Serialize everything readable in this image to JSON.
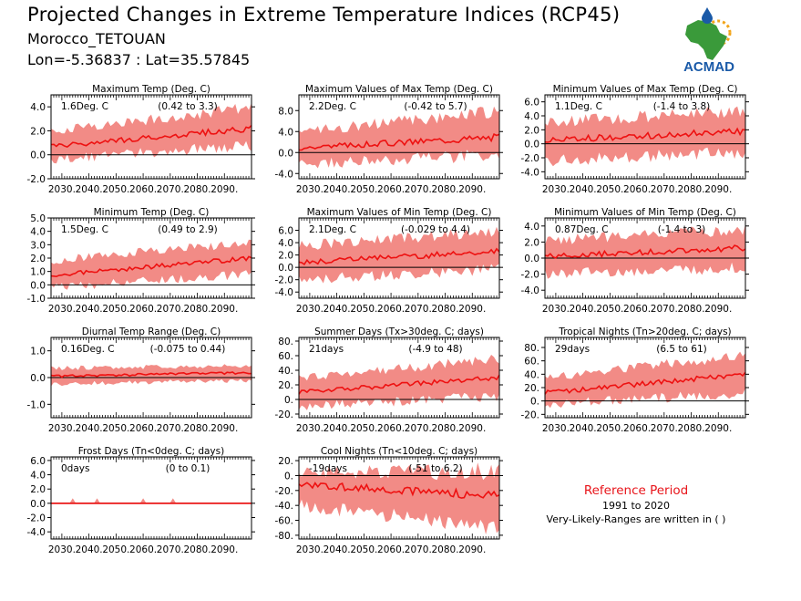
{
  "header": {
    "title": "Projected Changes in Extreme Temperature Indices (RCP45)",
    "location": "Morocco_TETOUAN",
    "coords": "Lon=-5.36837 : Lat=35.57845"
  },
  "logo": {
    "text": "ACMAD",
    "icon": "africa-map-sun-drop-logo"
  },
  "reference": {
    "title": "Reference Period",
    "years": "1991 to 2020",
    "note": "Very-Likely-Ranges are written in ( )"
  },
  "colors": {
    "band": "#f28b86",
    "line": "#ee1111",
    "zero": "#000000",
    "reference_title": "#e8141a",
    "logo_green": "#3a9a3a",
    "logo_blue": "#1a5aa8",
    "logo_sun": "#f2a51a"
  },
  "x_axis": {
    "ticks": [
      2030,
      2040,
      2050,
      2060,
      2070,
      2080,
      2090
    ],
    "tick_labels": [
      "2030.",
      "2040.",
      "2050.",
      "2060.",
      "2070.",
      "2080.",
      "2090."
    ],
    "range": [
      2026,
      2100
    ]
  },
  "chart_data": [
    {
      "type": "area",
      "title": "Maximum Temp (Deg. C)",
      "summary": "1.6Deg. C",
      "range_text": "(0.42 to 3.3)",
      "ylim": [
        -2,
        5
      ],
      "yticks": [
        -2,
        0,
        2,
        4
      ],
      "ytick_labels": [
        "-2.0",
        "0.0",
        "2.0",
        "4.0"
      ],
      "series": [
        {
          "x_start": 2026,
          "x_end": 2100,
          "mean_start": 0.7,
          "mean_end": 2.2,
          "lower_start": -0.4,
          "lower_end": 0.8,
          "upper_start": 2.0,
          "upper_end": 3.9
        }
      ]
    },
    {
      "type": "area",
      "title": "Maximum Values of Max Temp (Deg. C)",
      "summary": "2.2Deg. C",
      "range_text": "(-0.42 to 5.7)",
      "ylim": [
        -5,
        11
      ],
      "yticks": [
        -4,
        0,
        4,
        8
      ],
      "ytick_labels": [
        "-4.0",
        "0.0",
        "4.0",
        "8.0"
      ],
      "series": [
        {
          "x_start": 2026,
          "x_end": 2100,
          "mean_start": 0.9,
          "mean_end": 3.0,
          "lower_start": -2.2,
          "lower_end": -0.5,
          "upper_start": 4.0,
          "upper_end": 7.8
        }
      ]
    },
    {
      "type": "area",
      "title": "Minimum Values of Max Temp (Deg. C)",
      "summary": "1.1Deg. C",
      "range_text": "(-1.4 to 3.8)",
      "ylim": [
        -5,
        7
      ],
      "yticks": [
        -4,
        -2,
        0,
        2,
        4,
        6
      ],
      "ytick_labels": [
        "-4.0",
        "-2.0",
        "0.0",
        "2.0",
        "4.0",
        "6.0"
      ],
      "series": [
        {
          "x_start": 2026,
          "x_end": 2100,
          "mean_start": 0.5,
          "mean_end": 1.8,
          "lower_start": -2.4,
          "lower_end": -1.2,
          "upper_start": 3.0,
          "upper_end": 4.8
        }
      ]
    },
    {
      "type": "area",
      "title": "Minimum Temp (Deg. C)",
      "summary": "1.5Deg. C",
      "range_text": "(0.49 to 2.9)",
      "ylim": [
        -1,
        5
      ],
      "yticks": [
        -1,
        0,
        1,
        2,
        3,
        4,
        5
      ],
      "ytick_labels": [
        "-1.0",
        "0.0",
        "1.0",
        "2.0",
        "3.0",
        "4.0",
        "5.0"
      ],
      "series": [
        {
          "x_start": 2026,
          "x_end": 2100,
          "mean_start": 0.7,
          "mean_end": 2.0,
          "lower_start": -0.2,
          "lower_end": 0.8,
          "upper_start": 1.8,
          "upper_end": 3.2
        }
      ]
    },
    {
      "type": "area",
      "title": "Maximum Values of Min Temp (Deg. C)",
      "summary": "2.1Deg. C",
      "range_text": "(-0.029 to 4.4)",
      "ylim": [
        -5,
        8
      ],
      "yticks": [
        -4,
        -2,
        0,
        2,
        4,
        6
      ],
      "ytick_labels": [
        "-4.0",
        "-2.0",
        "0.0",
        "2.0",
        "4.0",
        "6.0"
      ],
      "series": [
        {
          "x_start": 2026,
          "x_end": 2100,
          "mean_start": 0.8,
          "mean_end": 2.6,
          "lower_start": -2.0,
          "lower_end": -0.3,
          "upper_start": 3.5,
          "upper_end": 5.8
        }
      ]
    },
    {
      "type": "area",
      "title": "Minimum Values of Min Temp (Deg. C)",
      "summary": "0.87Deg. C",
      "range_text": "(-1.4 to 3)",
      "ylim": [
        -5,
        5
      ],
      "yticks": [
        -4,
        -2,
        0,
        2,
        4
      ],
      "ytick_labels": [
        "-4.0",
        "-2.0",
        "0.0",
        "2.0",
        "4.0"
      ],
      "series": [
        {
          "x_start": 2026,
          "x_end": 2100,
          "mean_start": 0.2,
          "mean_end": 1.3,
          "lower_start": -2.0,
          "lower_end": -1.2,
          "upper_start": 2.2,
          "upper_end": 3.6
        }
      ]
    },
    {
      "type": "area",
      "title": "Diurnal Temp Range (Deg. C)",
      "summary": "0.16Deg. C",
      "range_text": "(-0.075 to 0.44)",
      "ylim": [
        -1.5,
        1.5
      ],
      "yticks": [
        -1,
        0,
        1
      ],
      "ytick_labels": [
        "-1.0",
        "0.0",
        "1.0"
      ],
      "series": [
        {
          "x_start": 2026,
          "x_end": 2100,
          "mean_start": 0.05,
          "mean_end": 0.18,
          "lower_start": -0.25,
          "lower_end": -0.1,
          "upper_start": 0.35,
          "upper_end": 0.45
        }
      ]
    },
    {
      "type": "area",
      "title": "Summer Days (Tx>30deg. C; days)",
      "summary": "21days",
      "range_text": "(-4.9 to 48)",
      "ylim": [
        -25,
        85
      ],
      "yticks": [
        -20,
        0,
        20,
        40,
        60,
        80
      ],
      "ytick_labels": [
        "-20.",
        "0.",
        "20.",
        "40.",
        "60.",
        "80."
      ],
      "series": [
        {
          "x_start": 2026,
          "x_end": 2100,
          "mean_start": 10,
          "mean_end": 30,
          "lower_start": -10,
          "lower_end": 5,
          "upper_start": 30,
          "upper_end": 55
        }
      ]
    },
    {
      "type": "area",
      "title": "Tropical Nights (Tn>20deg. C; days)",
      "summary": "29days",
      "range_text": "(6.5 to 61)",
      "ylim": [
        -25,
        95
      ],
      "yticks": [
        -20,
        0,
        20,
        40,
        60,
        80
      ],
      "ytick_labels": [
        "-20.",
        "0.",
        "20.",
        "40.",
        "60.",
        "80."
      ],
      "series": [
        {
          "x_start": 2026,
          "x_end": 2100,
          "mean_start": 12,
          "mean_end": 40,
          "lower_start": -5,
          "lower_end": 12,
          "upper_start": 35,
          "upper_end": 68
        }
      ]
    },
    {
      "type": "area",
      "title": "Frost Days (Tn<0deg. C; days)",
      "summary": "0days",
      "range_text": "(0 to 0.1)",
      "ylim": [
        -5,
        6.5
      ],
      "yticks": [
        -4,
        -2,
        0,
        2,
        4,
        6
      ],
      "ytick_labels": [
        "-4.0",
        "-2.0",
        "0.0",
        "2.0",
        "4.0",
        "6.0"
      ],
      "series": [
        {
          "x_start": 2026,
          "x_end": 2100,
          "mean_start": 0,
          "mean_end": 0,
          "lower_start": 0,
          "lower_end": 0,
          "upper_start": 0.15,
          "upper_end": 0.15
        }
      ]
    },
    {
      "type": "area",
      "title": "Cool Nights (Tn<10deg. C; days)",
      "summary": "-19days",
      "range_text": "(-51 to 6.2)",
      "ylim": [
        -85,
        25
      ],
      "yticks": [
        -80,
        -60,
        -40,
        -20,
        0,
        20
      ],
      "ytick_labels": [
        "-80.",
        "-60.",
        "-40.",
        "-20.",
        "0.",
        "20."
      ],
      "series": [
        {
          "x_start": 2026,
          "x_end": 2100,
          "mean_start": -12,
          "mean_end": -27,
          "lower_start": -40,
          "lower_end": -70,
          "upper_start": 5,
          "upper_end": 5
        }
      ]
    }
  ]
}
